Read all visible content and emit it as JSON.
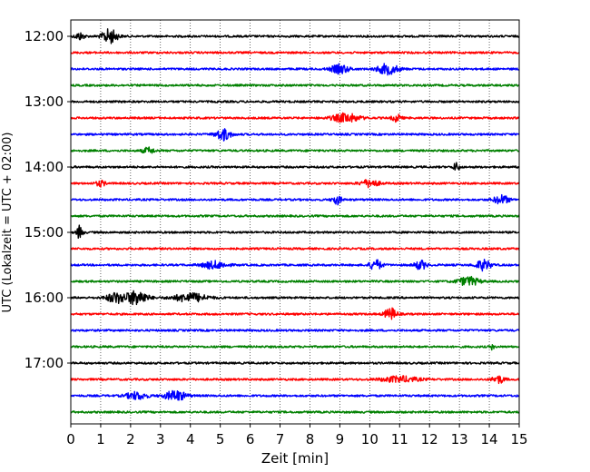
{
  "chart_data": {
    "type": "line",
    "xlabel": "Zeit  [min]",
    "ylabel": "UTC (Lokalzeit = UTC + 02:00)",
    "xlim": [
      0,
      15
    ],
    "x_ticks": [
      "0",
      "1",
      "2",
      "3",
      "4",
      "5",
      "6",
      "7",
      "8",
      "9",
      "10",
      "11",
      "12",
      "13",
      "14",
      "15"
    ],
    "y_ticks": [
      "12:00",
      "13:00",
      "14:00",
      "15:00",
      "16:00",
      "17:00"
    ],
    "grid": "vertical dotted at each minute",
    "colors_cycle": [
      "#000000",
      "#ff0000",
      "#0000ff",
      "#008000"
    ],
    "traces": [
      {
        "start": "12:00",
        "color": "#000000",
        "events": [
          {
            "t": 1.3,
            "amp": 1.0,
            "w": 0.5
          },
          {
            "t": 0.3,
            "amp": 0.5,
            "w": 0.3
          }
        ]
      },
      {
        "start": "12:15",
        "color": "#ff0000",
        "events": []
      },
      {
        "start": "12:30",
        "color": "#0000ff",
        "events": [
          {
            "t": 9.0,
            "amp": 0.6,
            "w": 0.6
          },
          {
            "t": 10.6,
            "amp": 0.7,
            "w": 0.7
          }
        ]
      },
      {
        "start": "12:45",
        "color": "#008000",
        "events": []
      },
      {
        "start": "13:00",
        "color": "#000000",
        "events": []
      },
      {
        "start": "13:15",
        "color": "#ff0000",
        "events": [
          {
            "t": 9.2,
            "amp": 0.6,
            "w": 0.9
          },
          {
            "t": 10.9,
            "amp": 0.5,
            "w": 0.3
          }
        ]
      },
      {
        "start": "13:30",
        "color": "#0000ff",
        "events": [
          {
            "t": 5.1,
            "amp": 0.8,
            "w": 0.5
          }
        ]
      },
      {
        "start": "13:45",
        "color": "#008000",
        "events": [
          {
            "t": 2.6,
            "amp": 0.4,
            "w": 0.4
          }
        ]
      },
      {
        "start": "14:00",
        "color": "#000000",
        "events": [
          {
            "t": 12.9,
            "amp": 0.6,
            "w": 0.2
          }
        ]
      },
      {
        "start": "14:15",
        "color": "#ff0000",
        "events": [
          {
            "t": 10.0,
            "amp": 0.5,
            "w": 0.6
          },
          {
            "t": 1.0,
            "amp": 0.4,
            "w": 0.3
          }
        ]
      },
      {
        "start": "14:30",
        "color": "#0000ff",
        "events": [
          {
            "t": 8.9,
            "amp": 0.6,
            "w": 0.3
          },
          {
            "t": 14.4,
            "amp": 0.6,
            "w": 0.5
          }
        ]
      },
      {
        "start": "14:45",
        "color": "#008000",
        "events": []
      },
      {
        "start": "15:00",
        "color": "#000000",
        "events": [
          {
            "t": 0.3,
            "amp": 0.9,
            "w": 0.2
          }
        ]
      },
      {
        "start": "15:15",
        "color": "#ff0000",
        "events": []
      },
      {
        "start": "15:30",
        "color": "#0000ff",
        "events": [
          {
            "t": 4.8,
            "amp": 0.5,
            "w": 0.8
          },
          {
            "t": 10.2,
            "amp": 0.7,
            "w": 0.4
          },
          {
            "t": 11.7,
            "amp": 0.6,
            "w": 0.4
          },
          {
            "t": 13.8,
            "amp": 0.7,
            "w": 0.5
          }
        ]
      },
      {
        "start": "15:45",
        "color": "#008000",
        "events": [
          {
            "t": 13.3,
            "amp": 0.6,
            "w": 0.7
          }
        ]
      },
      {
        "start": "16:00",
        "color": "#000000",
        "events": [
          {
            "t": 1.5,
            "amp": 0.7,
            "w": 0.6
          },
          {
            "t": 2.2,
            "amp": 1.0,
            "w": 0.7
          },
          {
            "t": 4.0,
            "amp": 0.6,
            "w": 1.1
          }
        ]
      },
      {
        "start": "16:15",
        "color": "#ff0000",
        "events": [
          {
            "t": 10.7,
            "amp": 0.8,
            "w": 0.4
          }
        ]
      },
      {
        "start": "16:30",
        "color": "#0000ff",
        "events": []
      },
      {
        "start": "16:45",
        "color": "#008000",
        "events": [
          {
            "t": 14.1,
            "amp": 0.4,
            "w": 0.1
          }
        ]
      },
      {
        "start": "17:00",
        "color": "#000000",
        "events": []
      },
      {
        "start": "17:15",
        "color": "#ff0000",
        "events": [
          {
            "t": 11.0,
            "amp": 0.4,
            "w": 1.2
          },
          {
            "t": 14.3,
            "amp": 0.5,
            "w": 0.4
          }
        ]
      },
      {
        "start": "17:30",
        "color": "#0000ff",
        "events": [
          {
            "t": 2.2,
            "amp": 0.5,
            "w": 0.7
          },
          {
            "t": 3.5,
            "amp": 0.7,
            "w": 0.7
          }
        ]
      },
      {
        "start": "17:45",
        "color": "#008000",
        "events": []
      }
    ]
  }
}
